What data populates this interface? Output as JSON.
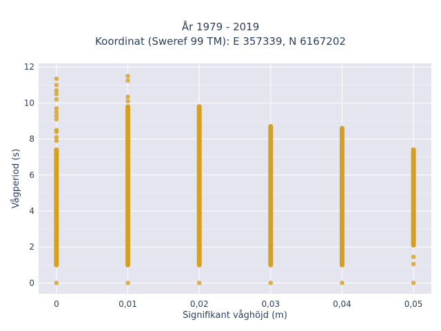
{
  "chart_data": {
    "type": "scatter",
    "title_lines": [
      "År 1979 - 2019",
      "Koordinat (Sweref 99 TM): E 357339, N 6167202"
    ],
    "xlabel": "Signifikant våghöjd (m)",
    "ylabel": "Vågperiod (s)",
    "xlim": [
      -0.0025,
      0.0525
    ],
    "ylim": [
      -0.6,
      12.2
    ],
    "x_ticks": [
      0,
      0.01,
      0.02,
      0.03,
      0.04,
      0.05
    ],
    "x_tick_labels": [
      "0",
      "0,01",
      "0,02",
      "0,03",
      "0,04",
      "0,05"
    ],
    "y_ticks": [
      0,
      2,
      4,
      6,
      8,
      10,
      12
    ],
    "y_tick_labels": [
      "0",
      "2",
      "4",
      "6",
      "8",
      "10",
      "12"
    ],
    "grid": true,
    "marker_color": "#d4a020",
    "plot_bg": "#e5e5f0",
    "columns": [
      {
        "x": 0,
        "range": [
          1.0,
          7.4
        ],
        "isolated": [
          0,
          7.9,
          8.1,
          8.4,
          8.5,
          9.1,
          9.3,
          9.5,
          9.7,
          10.2,
          10.5,
          10.7,
          11.0,
          11.35
        ]
      },
      {
        "x": 0.01,
        "range": [
          1.0,
          9.8
        ],
        "isolated": [
          0,
          10.1,
          10.35,
          11.25,
          11.5
        ]
      },
      {
        "x": 0.02,
        "range": [
          1.0,
          9.8
        ],
        "isolated": [
          0
        ]
      },
      {
        "x": 0.03,
        "range": [
          1.0,
          8.7
        ],
        "isolated": [
          0
        ]
      },
      {
        "x": 0.04,
        "range": [
          1.0,
          8.6
        ],
        "isolated": [
          0
        ]
      },
      {
        "x": 0.05,
        "range": [
          2.1,
          7.4
        ],
        "isolated": [
          0,
          1.05,
          1.45
        ]
      }
    ]
  }
}
